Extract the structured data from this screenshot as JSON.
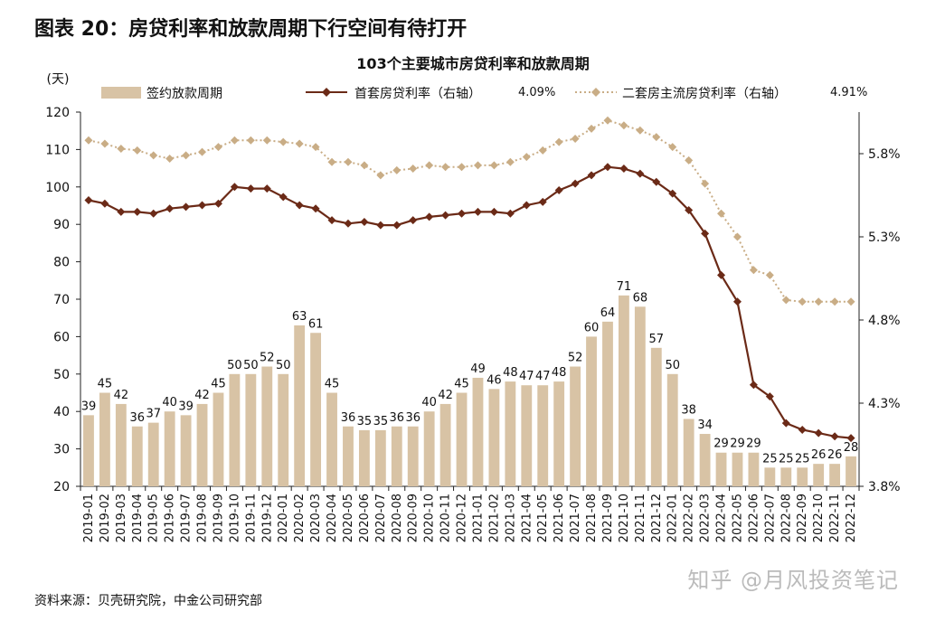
{
  "figure_title": "图表 20：房贷利率和放款周期下行空间有待打开",
  "source_text": "资料来源：贝壳研究院，中金公司研究部",
  "watermark_text": "知乎 @月风投资笔记",
  "colors": {
    "bar": "#D8C3A5",
    "line_first": "#6B2A17",
    "line_second": "#C9AD86",
    "axis": "#222222"
  },
  "chart_data": {
    "type": "bar",
    "title": "103个主要城市房贷利率和放款周期",
    "left_axis_unit": "(天)",
    "ylim_left": [
      20,
      120
    ],
    "yticks_left": [
      20,
      30,
      40,
      50,
      60,
      70,
      80,
      90,
      100,
      110,
      120
    ],
    "ylim_right": [
      3.8,
      6.05
    ],
    "yticks_right": [
      3.8,
      4.3,
      4.8,
      5.3,
      5.8
    ],
    "ytick_labels_right": [
      "3.8%",
      "4.3%",
      "4.8%",
      "5.3%",
      "5.8%"
    ],
    "grid": false,
    "legend_position": "top",
    "categories": [
      "2019-01",
      "2019-02",
      "2019-03",
      "2019-04",
      "2019-05",
      "2019-06",
      "2019-07",
      "2019-08",
      "2019-09",
      "2019-10",
      "2019-11",
      "2019-12",
      "2020-01",
      "2020-02",
      "2020-03",
      "2020-04",
      "2020-05",
      "2020-06",
      "2020-07",
      "2020-08",
      "2020-09",
      "2020-10",
      "2020-11",
      "2020-12",
      "2021-01",
      "2021-02",
      "2021-03",
      "2021-04",
      "2021-05",
      "2021-06",
      "2021-07",
      "2021-08",
      "2021-09",
      "2021-10",
      "2021-11",
      "2021-12",
      "2022-01",
      "2022-02",
      "2022-03",
      "2022-04",
      "2022-05",
      "2022-06",
      "2022-07",
      "2022-08",
      "2022-09",
      "2022-10",
      "2022-11",
      "2022-12"
    ],
    "bar_labels": [
      "39",
      "45",
      "42",
      "36",
      "37",
      "40",
      "39",
      "42",
      "45",
      "50",
      "50",
      "52",
      "50",
      "63",
      "61",
      "45",
      "36",
      "35",
      "35",
      "36",
      "36",
      "40",
      "42",
      "45",
      "49",
      "46",
      "48",
      "47",
      "47",
      "48",
      "52",
      "60",
      "64",
      "71",
      "68",
      "57",
      "50",
      "38",
      "34",
      "29",
      "29",
      "29",
      "25",
      "25",
      "25",
      "26",
      "26",
      "28"
    ],
    "series": [
      {
        "name": "签约放款周期",
        "type": "bar",
        "axis": "left",
        "values": [
          39,
          45,
          42,
          36,
          37,
          40,
          39,
          42,
          45,
          50,
          50,
          52,
          50,
          63,
          61,
          45,
          36,
          35,
          35,
          36,
          36,
          40,
          42,
          45,
          49,
          46,
          48,
          47,
          47,
          48,
          52,
          60,
          64,
          71,
          68,
          57,
          50,
          38,
          34,
          29,
          29,
          29,
          25,
          25,
          25,
          26,
          26,
          28
        ]
      },
      {
        "name": "首套房贷利率（右轴）",
        "type": "line",
        "axis": "right",
        "last_value_label": "4.09%",
        "values": [
          5.52,
          5.5,
          5.45,
          5.45,
          5.44,
          5.47,
          5.48,
          5.49,
          5.5,
          5.6,
          5.59,
          5.59,
          5.54,
          5.49,
          5.47,
          5.4,
          5.38,
          5.39,
          5.37,
          5.37,
          5.4,
          5.42,
          5.43,
          5.44,
          5.45,
          5.45,
          5.44,
          5.49,
          5.51,
          5.58,
          5.62,
          5.67,
          5.72,
          5.71,
          5.68,
          5.63,
          5.56,
          5.46,
          5.32,
          5.07,
          4.91,
          4.41,
          4.34,
          4.18,
          4.14,
          4.12,
          4.1,
          4.09
        ]
      },
      {
        "name": "二套房主流房贷利率（右轴）",
        "type": "line",
        "axis": "right",
        "last_value_label": "4.91%",
        "values": [
          5.88,
          5.86,
          5.83,
          5.82,
          5.79,
          5.77,
          5.79,
          5.81,
          5.84,
          5.88,
          5.88,
          5.88,
          5.87,
          5.86,
          5.84,
          5.75,
          5.75,
          5.73,
          5.67,
          5.7,
          5.71,
          5.73,
          5.72,
          5.72,
          5.73,
          5.73,
          5.75,
          5.78,
          5.82,
          5.87,
          5.89,
          5.95,
          6.0,
          5.97,
          5.94,
          5.9,
          5.84,
          5.76,
          5.62,
          5.44,
          5.3,
          5.1,
          5.07,
          4.92,
          4.91,
          4.91,
          4.91,
          4.91
        ]
      }
    ]
  }
}
